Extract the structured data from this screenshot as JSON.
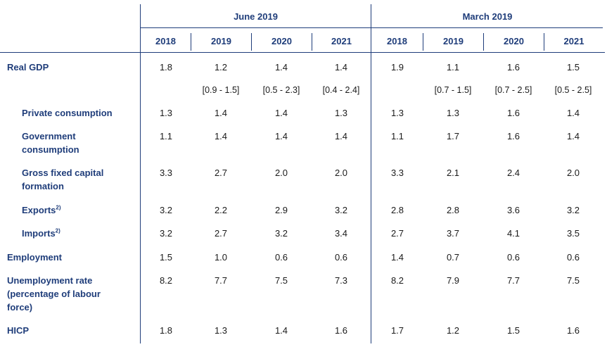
{
  "header": {
    "groups": [
      "June 2019",
      "March 2019"
    ],
    "years": [
      "2018",
      "2019",
      "2020",
      "2021",
      "2018",
      "2019",
      "2020",
      "2021"
    ]
  },
  "rows": [
    {
      "label": "Real GDP",
      "sup": "",
      "indent": false,
      "values": [
        "1.8",
        "1.2",
        "1.4",
        "1.4",
        "1.9",
        "1.1",
        "1.6",
        "1.5"
      ],
      "ranges": [
        "",
        "[0.9 - 1.5]",
        "[0.5 - 2.3]",
        "[0.4 - 2.4]",
        "",
        "[0.7 - 1.5]",
        "[0.7 - 2.5]",
        "[0.5 - 2.5]"
      ]
    },
    {
      "label": "Private consumption",
      "sup": "",
      "indent": true,
      "values": [
        "1.3",
        "1.4",
        "1.4",
        "1.3",
        "1.3",
        "1.3",
        "1.6",
        "1.4"
      ]
    },
    {
      "label": "Government consumption",
      "sup": "",
      "indent": true,
      "values": [
        "1.1",
        "1.4",
        "1.4",
        "1.4",
        "1.1",
        "1.7",
        "1.6",
        "1.4"
      ]
    },
    {
      "label": "Gross fixed capital formation",
      "sup": "",
      "indent": true,
      "values": [
        "3.3",
        "2.7",
        "2.0",
        "2.0",
        "3.3",
        "2.1",
        "2.4",
        "2.0"
      ]
    },
    {
      "label": "Exports",
      "sup": "2)",
      "indent": true,
      "values": [
        "3.2",
        "2.2",
        "2.9",
        "3.2",
        "2.8",
        "2.8",
        "3.6",
        "3.2"
      ]
    },
    {
      "label": "Imports",
      "sup": "2)",
      "indent": true,
      "values": [
        "3.2",
        "2.7",
        "3.2",
        "3.4",
        "2.7",
        "3.7",
        "4.1",
        "3.5"
      ]
    },
    {
      "label": "Employment",
      "sup": "",
      "indent": false,
      "values": [
        "1.5",
        "1.0",
        "0.6",
        "0.6",
        "1.4",
        "0.7",
        "0.6",
        "0.6"
      ]
    },
    {
      "label": "Unemployment rate (percentage of labour force)",
      "sup": "",
      "indent": false,
      "values": [
        "8.2",
        "7.7",
        "7.5",
        "7.3",
        "8.2",
        "7.9",
        "7.7",
        "7.5"
      ]
    },
    {
      "label": "HICP",
      "sup": "",
      "indent": false,
      "values": [
        "1.8",
        "1.3",
        "1.4",
        "1.6",
        "1.7",
        "1.2",
        "1.5",
        "1.6"
      ]
    }
  ]
}
